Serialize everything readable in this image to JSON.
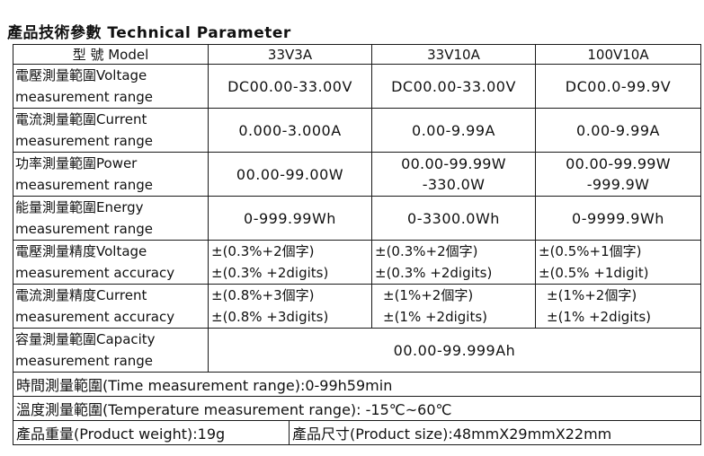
{
  "title": "產品技術參數 Technical Parameter",
  "header": {
    "model_label": "型 號 Model",
    "models": [
      "33V3A",
      "33V10A",
      "100V10A"
    ]
  },
  "rows": [
    {
      "label_line1": "電壓測量範圍Voltage",
      "label_line2": "measurement range",
      "values": [
        [
          "DC00.00-33.00V"
        ],
        [
          "DC00.00-33.00V"
        ],
        [
          "DC00.0-99.9V"
        ]
      ]
    },
    {
      "label_line1": "電流測量範圍Current",
      "label_line2": "measurement range",
      "values": [
        [
          "0.000-3.000A"
        ],
        [
          "0.00-9.99A"
        ],
        [
          "0.00-9.99A"
        ]
      ]
    },
    {
      "label_line1": "功率測量範圍Power",
      "label_line2": "measurement range",
      "values": [
        [
          "00.00-99.00W"
        ],
        [
          "00.00-99.99W",
          "-330.0W"
        ],
        [
          "00.00-99.99W",
          "-999.9W"
        ]
      ]
    },
    {
      "label_line1": "能量測量範圍Energy",
      "label_line2": "measurement range",
      "values": [
        [
          "0-999.99Wh"
        ],
        [
          "0-3300.0Wh"
        ],
        [
          "0-9999.9Wh"
        ]
      ]
    },
    {
      "label_line1": "電壓測量精度Voltage",
      "label_line2": "measurement accuracy",
      "values": [
        [
          "±(0.3%+2個字)",
          "±(0.3% +2digits)"
        ],
        [
          "±(0.3%+2個字)",
          "±(0.3% +2digits)"
        ],
        [
          "±(0.5%+1個字)",
          "±(0.5% +1digit)"
        ]
      ]
    },
    {
      "label_line1": "電流測量精度Current",
      "label_line2": "measurement accuracy",
      "values": [
        [
          "±(0.8%+3個字)",
          "±(0.8% +3digits)"
        ],
        [
          "±(1%+2個字)",
          "±(1% +2digits)"
        ],
        [
          "±(1%+2個字)",
          "±(1% +2digits)"
        ]
      ]
    }
  ],
  "capacity": {
    "label_line1": "容量測量範圍Capacity",
    "label_line2": "measurement range",
    "value": "00.00-99.999Ah"
  },
  "time_range": "時間測量範圍(Time measurement range):0-99h59min",
  "temp_range": "溫度測量範圍(Temperature measurement range): -15℃~60℃",
  "weight": "產品重量(Product weight):19g",
  "size": "產品尺寸(Product size):48mmX29mmX22mm"
}
